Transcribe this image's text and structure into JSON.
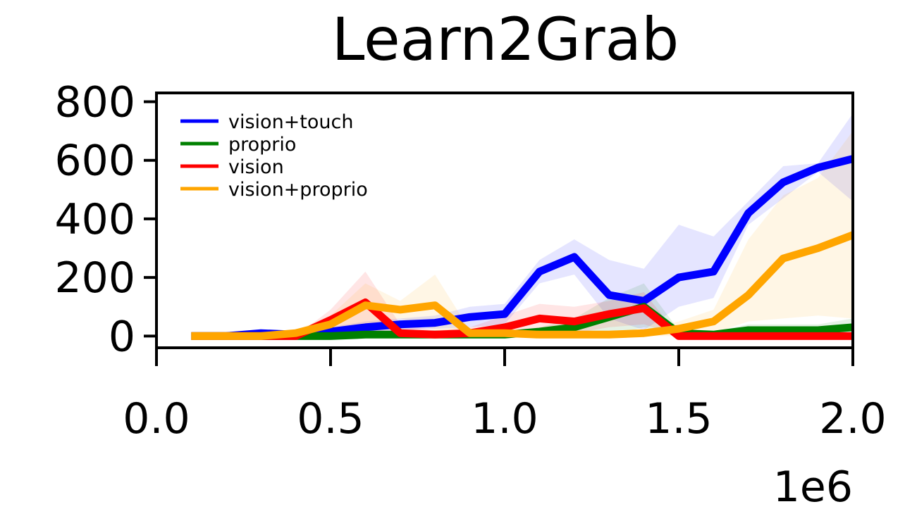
{
  "chart_data": {
    "type": "line",
    "title": "Learn2Grab",
    "xlabel": "",
    "ylabel": "",
    "x_offset_label": "1e6",
    "xlim": [
      0,
      2000000
    ],
    "ylim": [
      -40,
      830
    ],
    "x_ticks": [
      0,
      500000,
      1000000,
      1500000,
      2000000
    ],
    "x_tick_labels": [
      "0.0",
      "0.5",
      "1.0",
      "1.5",
      "2.0"
    ],
    "y_ticks": [
      0,
      200,
      400,
      600,
      800
    ],
    "y_tick_labels": [
      "0",
      "200",
      "400",
      "600",
      "800"
    ],
    "grid": false,
    "legend_position": "top-left",
    "x": [
      100000,
      200000,
      300000,
      400000,
      500000,
      600000,
      700000,
      800000,
      900000,
      1000000,
      1100000,
      1200000,
      1300000,
      1400000,
      1500000,
      1600000,
      1700000,
      1800000,
      1900000,
      2000000
    ],
    "series": [
      {
        "name": "vision+touch",
        "color": "#0000ff",
        "values": [
          0,
          0,
          10,
          5,
          15,
          30,
          40,
          45,
          65,
          75,
          220,
          270,
          140,
          120,
          200,
          220,
          420,
          525,
          575,
          605
        ],
        "lower": [
          0,
          0,
          0,
          0,
          0,
          10,
          20,
          25,
          30,
          40,
          180,
          210,
          60,
          20,
          100,
          130,
          380,
          470,
          560,
          460
        ],
        "upper": [
          0,
          0,
          20,
          15,
          30,
          50,
          60,
          70,
          100,
          110,
          260,
          330,
          260,
          230,
          380,
          340,
          460,
          580,
          590,
          760
        ]
      },
      {
        "name": "proprio",
        "color": "#008000",
        "values": [
          0,
          0,
          0,
          0,
          0,
          5,
          5,
          5,
          5,
          5,
          15,
          30,
          65,
          100,
          10,
          5,
          20,
          20,
          20,
          30
        ],
        "lower": [
          0,
          0,
          0,
          0,
          0,
          0,
          0,
          0,
          0,
          0,
          0,
          0,
          0,
          30,
          0,
          0,
          0,
          0,
          0,
          0
        ],
        "upper": [
          0,
          0,
          0,
          0,
          0,
          10,
          10,
          10,
          10,
          10,
          30,
          60,
          130,
          180,
          20,
          15,
          40,
          40,
          40,
          60
        ]
      },
      {
        "name": "vision",
        "color": "#ff0000",
        "values": [
          0,
          0,
          0,
          0,
          55,
          115,
          10,
          5,
          10,
          30,
          60,
          50,
          75,
          95,
          0,
          0,
          0,
          0,
          0,
          0
        ],
        "lower": [
          0,
          0,
          0,
          0,
          20,
          20,
          0,
          0,
          0,
          0,
          20,
          10,
          30,
          40,
          0,
          0,
          0,
          0,
          0,
          0
        ],
        "upper": [
          0,
          0,
          0,
          0,
          90,
          220,
          40,
          20,
          30,
          70,
          110,
          100,
          120,
          150,
          0,
          0,
          0,
          0,
          0,
          0
        ]
      },
      {
        "name": "vision+proprio",
        "color": "#ffa500",
        "values": [
          0,
          0,
          0,
          10,
          40,
          105,
          90,
          105,
          10,
          10,
          5,
          5,
          5,
          10,
          25,
          50,
          140,
          265,
          300,
          345
        ],
        "lower": [
          0,
          0,
          0,
          0,
          10,
          30,
          60,
          20,
          0,
          0,
          0,
          0,
          0,
          0,
          0,
          10,
          50,
          60,
          70,
          60
        ],
        "upper": [
          0,
          0,
          0,
          20,
          70,
          180,
          120,
          210,
          20,
          20,
          10,
          10,
          10,
          20,
          50,
          90,
          330,
          480,
          540,
          700
        ]
      }
    ]
  }
}
